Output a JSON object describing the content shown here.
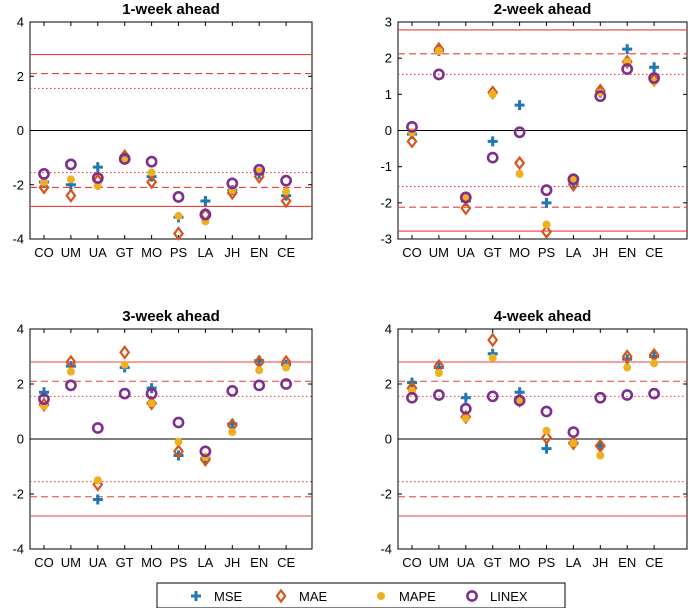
{
  "legend": {
    "entries": [
      {
        "name": "MSE",
        "marker": "plus",
        "color": "#1f77b4"
      },
      {
        "name": "MAE",
        "marker": "diamond",
        "color": "#d95319"
      },
      {
        "name": "MAPE",
        "marker": "dot",
        "color": "#edb120"
      },
      {
        "name": "LINEX",
        "marker": "circle",
        "color": "#7e2f8e"
      }
    ]
  },
  "colors": {
    "reference_lines": "#e8413b",
    "zero_line": "#000000",
    "axes": "#000000"
  },
  "chart_data": [
    {
      "type": "scatter",
      "title": "1-week ahead",
      "categories": [
        "CO",
        "UM",
        "UA",
        "GT",
        "MO",
        "PS",
        "LA",
        "JH",
        "EN",
        "CE"
      ],
      "ylim": [
        -4,
        4
      ],
      "yticks": [
        -4,
        -2,
        0,
        2,
        4
      ],
      "reference_lines": [
        {
          "style": "solid",
          "values": [
            2.8,
            -2.8
          ]
        },
        {
          "style": "dashed",
          "values": [
            2.1,
            -2.1
          ]
        },
        {
          "style": "dotted",
          "values": [
            1.55,
            -1.55
          ]
        }
      ],
      "series": [
        {
          "name": "MSE",
          "values": [
            -1.9,
            -2.0,
            -1.35,
            -1.0,
            -1.7,
            -3.2,
            -2.6,
            -2.2,
            -1.6,
            -2.4
          ]
        },
        {
          "name": "MAE",
          "values": [
            -2.1,
            -2.4,
            -1.85,
            -0.95,
            -1.9,
            -3.8,
            -3.1,
            -2.3,
            -1.7,
            -2.6
          ]
        },
        {
          "name": "MAPE",
          "values": [
            -1.9,
            -1.8,
            -2.05,
            -1.1,
            -1.55,
            -3.15,
            -3.35,
            -2.2,
            -1.5,
            -2.25
          ]
        },
        {
          "name": "LINEX",
          "values": [
            -1.6,
            -1.25,
            -1.75,
            -1.05,
            -1.15,
            -2.45,
            -3.1,
            -1.95,
            -1.45,
            -1.85
          ]
        }
      ]
    },
    {
      "type": "scatter",
      "title": "2-week ahead",
      "categories": [
        "CO",
        "UM",
        "UA",
        "GT",
        "MO",
        "PS",
        "LA",
        "JH",
        "EN",
        "CE"
      ],
      "ylim": [
        -3,
        3
      ],
      "yticks": [
        -3,
        -2,
        -1,
        0,
        1,
        2,
        3
      ],
      "reference_lines": [
        {
          "style": "solid",
          "values": [
            2.78,
            -2.78
          ]
        },
        {
          "style": "dashed",
          "values": [
            2.12,
            -2.12
          ]
        },
        {
          "style": "dotted",
          "values": [
            1.55,
            -1.55
          ]
        }
      ],
      "series": [
        {
          "name": "MSE",
          "values": [
            -0.1,
            2.2,
            -1.95,
            -0.3,
            0.7,
            -2.0,
            -1.45,
            1.05,
            2.25,
            1.75
          ]
        },
        {
          "name": "MAE",
          "values": [
            -0.3,
            2.25,
            -2.15,
            1.05,
            -0.9,
            -2.8,
            -1.5,
            1.1,
            1.9,
            1.4
          ]
        },
        {
          "name": "MAPE",
          "values": [
            -0.05,
            2.2,
            -1.85,
            1.0,
            -1.2,
            -2.6,
            -1.35,
            1.05,
            1.9,
            1.35
          ]
        },
        {
          "name": "LINEX",
          "values": [
            0.1,
            1.55,
            -1.85,
            -0.75,
            -0.05,
            -1.65,
            -1.35,
            0.95,
            1.7,
            1.45
          ]
        }
      ]
    },
    {
      "type": "scatter",
      "title": "3-week ahead",
      "categories": [
        "CO",
        "UM",
        "UA",
        "GT",
        "MO",
        "PS",
        "LA",
        "JH",
        "EN",
        "CE"
      ],
      "ylim": [
        -4,
        4
      ],
      "yticks": [
        -4,
        -2,
        0,
        2,
        4
      ],
      "reference_lines": [
        {
          "style": "solid",
          "values": [
            2.8,
            -2.8
          ]
        },
        {
          "style": "dashed",
          "values": [
            2.1,
            -2.1
          ]
        },
        {
          "style": "dotted",
          "values": [
            1.55,
            -1.55
          ]
        }
      ],
      "series": [
        {
          "name": "MSE",
          "values": [
            1.7,
            2.65,
            -2.2,
            2.6,
            1.85,
            -0.6,
            -0.7,
            0.55,
            2.85,
            2.7
          ]
        },
        {
          "name": "MAE",
          "values": [
            1.25,
            2.8,
            -1.65,
            3.15,
            1.3,
            -0.45,
            -0.75,
            0.5,
            2.8,
            2.8
          ]
        },
        {
          "name": "MAPE",
          "values": [
            1.2,
            2.45,
            -1.5,
            2.7,
            1.3,
            -0.1,
            -0.65,
            0.25,
            2.5,
            2.6
          ]
        },
        {
          "name": "LINEX",
          "values": [
            1.45,
            1.95,
            0.4,
            1.65,
            1.65,
            0.6,
            -0.45,
            1.75,
            1.95,
            2.0
          ]
        }
      ]
    },
    {
      "type": "scatter",
      "title": "4-week ahead",
      "categories": [
        "CO",
        "UM",
        "UA",
        "GT",
        "MO",
        "PS",
        "LA",
        "JH",
        "EN",
        "CE"
      ],
      "ylim": [
        -4,
        4
      ],
      "yticks": [
        -4,
        -2,
        0,
        2,
        4
      ],
      "reference_lines": [
        {
          "style": "solid",
          "values": [
            2.8,
            -2.8
          ]
        },
        {
          "style": "dashed",
          "values": [
            2.1,
            -2.1
          ]
        },
        {
          "style": "dotted",
          "values": [
            1.55,
            -1.55
          ]
        }
      ],
      "series": [
        {
          "name": "MSE",
          "values": [
            2.05,
            2.6,
            1.5,
            3.1,
            1.7,
            -0.35,
            -0.15,
            -0.25,
            2.9,
            3.0
          ]
        },
        {
          "name": "MAE",
          "values": [
            1.85,
            2.65,
            0.8,
            3.6,
            1.4,
            0.05,
            -0.15,
            -0.25,
            3.0,
            3.05
          ]
        },
        {
          "name": "MAPE",
          "values": [
            1.75,
            2.4,
            0.75,
            2.95,
            1.35,
            0.3,
            -0.15,
            -0.6,
            2.6,
            2.75
          ]
        },
        {
          "name": "LINEX",
          "values": [
            1.5,
            1.6,
            1.1,
            1.55,
            1.4,
            1.0,
            0.25,
            1.5,
            1.6,
            1.65
          ]
        }
      ]
    }
  ]
}
